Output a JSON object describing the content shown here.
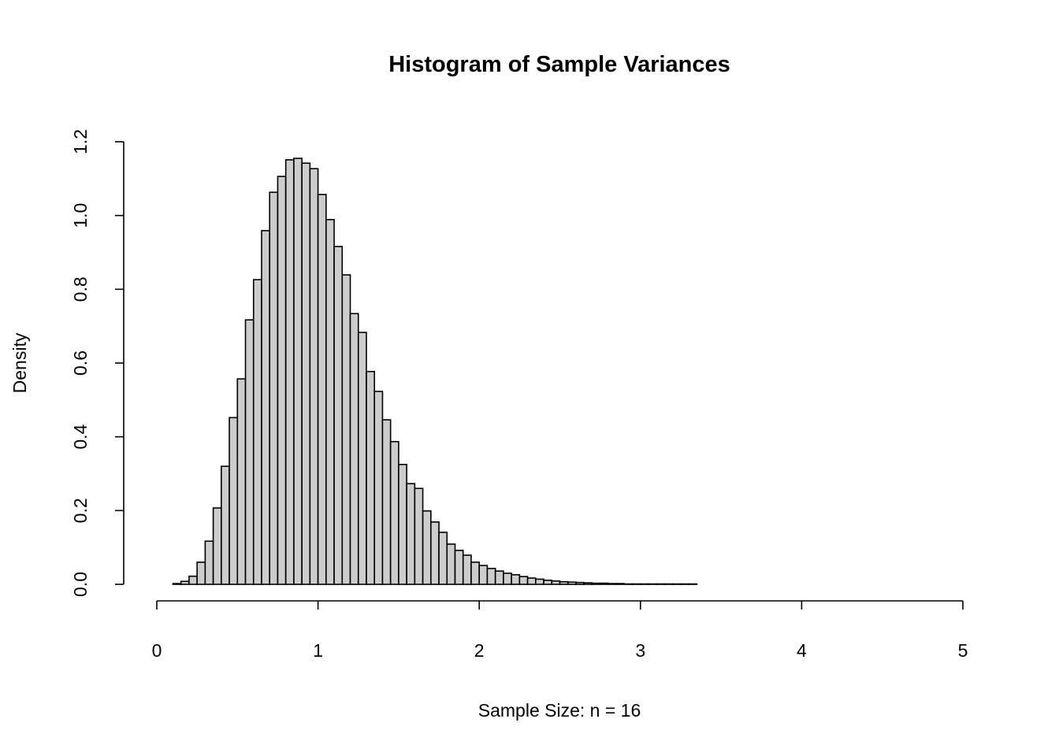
{
  "chart_data": {
    "type": "bar",
    "title": "Histogram of Sample Variances",
    "xlabel": "Sample Size: n = 16",
    "ylabel": "Density",
    "xlim": [
      0,
      5
    ],
    "ylim": [
      0,
      1.2
    ],
    "x_ticks": [
      "0",
      "1",
      "2",
      "3",
      "4",
      "5"
    ],
    "y_ticks": [
      "0.0",
      "0.2",
      "0.4",
      "0.6",
      "0.8",
      "1.0",
      "1.2"
    ],
    "bin_width": 0.05,
    "bin_start": 0,
    "grid": false,
    "bar_fill": "#cccccc",
    "bar_stroke": "#000000",
    "values": [
      0,
      0,
      0.002,
      0.008,
      0.022,
      0.06,
      0.117,
      0.207,
      0.32,
      0.452,
      0.557,
      0.717,
      0.826,
      0.959,
      1.063,
      1.106,
      1.151,
      1.155,
      1.142,
      1.127,
      1.057,
      0.989,
      0.916,
      0.839,
      0.734,
      0.683,
      0.577,
      0.523,
      0.446,
      0.387,
      0.325,
      0.273,
      0.26,
      0.199,
      0.169,
      0.141,
      0.109,
      0.092,
      0.079,
      0.06,
      0.051,
      0.043,
      0.036,
      0.03,
      0.026,
      0.021,
      0.017,
      0.014,
      0.011,
      0.009,
      0.007,
      0.006,
      0.005,
      0.004,
      0.003,
      0.003,
      0.002,
      0.002,
      0.001,
      0.001,
      0.001,
      0.001,
      0.001,
      0.001,
      0.001,
      0.001,
      0.001,
      0,
      0,
      0,
      0,
      0,
      0,
      0,
      0,
      0,
      0,
      0,
      0,
      0,
      0,
      0,
      0,
      0,
      0,
      0,
      0,
      0,
      0,
      0,
      0,
      0,
      0,
      0,
      0,
      0,
      0,
      0,
      0,
      0
    ]
  }
}
